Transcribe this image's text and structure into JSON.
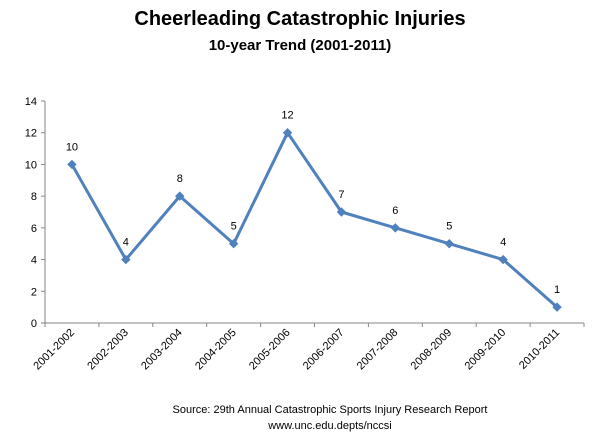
{
  "chart_data": {
    "type": "line",
    "title": "Cheerleading Catastrophic Injuries",
    "subtitle": "10-year Trend (2001-2011)",
    "categories": [
      "2001-2002",
      "2002-2003",
      "2003-2004",
      "2004-2005",
      "2005-2006",
      "2006-2007",
      "2007-2008",
      "2008-2009",
      "2009-2010",
      "2010-2011"
    ],
    "series": [
      {
        "values": [
          10,
          4,
          8,
          5,
          12,
          7,
          6,
          5,
          4,
          1
        ]
      }
    ],
    "data_labels": [
      "10",
      "4",
      "8",
      "5",
      "12",
      "7",
      "6",
      "5",
      "4",
      "1"
    ],
    "y_ticks": [
      "0",
      "2",
      "4",
      "6",
      "8",
      "10",
      "12",
      "14"
    ],
    "ylim": [
      0,
      14
    ],
    "grid": false,
    "legend": "none",
    "line_color": "#4f81bd"
  },
  "footer": {
    "source": "Source:  29th Annual Catastrophic Sports Injury Research Report",
    "url": "www.unc.edu.depts/nccsi"
  }
}
